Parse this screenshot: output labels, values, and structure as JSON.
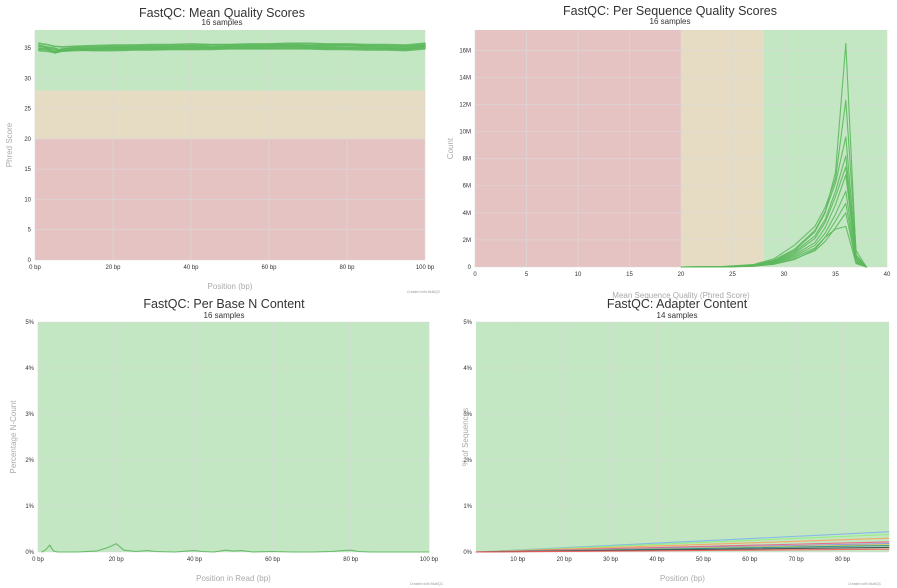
{
  "credit": "Created with MultiQC",
  "colors": {
    "good": "#c3e6c3",
    "warn": "#e6dcc3",
    "fail": "#e6c3c3",
    "line": "#5cb85c"
  },
  "chart_data": [
    {
      "type": "line",
      "title": "FastQC: Mean Quality Scores",
      "subtitle": "16 samples",
      "xlabel": "Position (bp)",
      "ylabel": "Phred Score",
      "xlim": [
        0,
        100
      ],
      "ylim": [
        0,
        38
      ],
      "x_ticks": [
        0,
        20,
        40,
        60,
        80,
        100
      ],
      "x_tick_labels": [
        "0 bp",
        "20 bp",
        "40 bp",
        "60 bp",
        "80 bp",
        "100 bp"
      ],
      "y_ticks": [
        0,
        5,
        10,
        15,
        20,
        25,
        30,
        35
      ],
      "y_tick_labels": [
        "0",
        "5",
        "10",
        "15",
        "20",
        "25",
        "30",
        "35"
      ],
      "bands": [
        {
          "from": 28,
          "to": 38,
          "zone": "good"
        },
        {
          "from": 20,
          "to": 28,
          "zone": "warn"
        },
        {
          "from": 0,
          "to": 20,
          "zone": "fail"
        }
      ],
      "grid": true,
      "series": [
        {
          "color": "#5cb85c",
          "x": [
            1,
            3,
            5,
            7,
            10,
            15,
            20,
            25,
            30,
            35,
            40,
            45,
            50,
            55,
            60,
            65,
            70,
            75,
            80,
            85,
            90,
            95,
            100
          ],
          "values": [
            35.5,
            35.2,
            35.0,
            34.6,
            34.8,
            35.0,
            35.1,
            35.1,
            35.2,
            35.2,
            35.3,
            35.2,
            35.3,
            35.3,
            35.4,
            35.4,
            35.4,
            35.3,
            35.4,
            35.3,
            35.2,
            35.1,
            35.4
          ]
        },
        {
          "color": "#5cb85c",
          "x": [
            1,
            3,
            5,
            7,
            10,
            15,
            20,
            25,
            30,
            35,
            40,
            45,
            50,
            55,
            60,
            65,
            70,
            75,
            80,
            85,
            90,
            95,
            100
          ],
          "values": [
            35.0,
            34.8,
            34.4,
            34.9,
            35.0,
            34.9,
            35.0,
            35.0,
            35.0,
            35.1,
            35.1,
            35.1,
            35.2,
            35.2,
            35.2,
            35.3,
            35.2,
            35.1,
            35.1,
            35.1,
            35.0,
            34.9,
            35.3
          ]
        },
        {
          "color": "#5cb85c",
          "x": [
            1,
            3,
            5,
            7,
            10,
            15,
            20,
            25,
            30,
            35,
            40,
            45,
            50,
            55,
            60,
            65,
            70,
            75,
            80,
            85,
            90,
            95,
            100
          ],
          "values": [
            35.8,
            35.6,
            35.3,
            35.2,
            35.3,
            35.4,
            35.5,
            35.5,
            35.6,
            35.6,
            35.7,
            35.6,
            35.6,
            35.7,
            35.7,
            35.8,
            35.8,
            35.7,
            35.7,
            35.6,
            35.6,
            35.5,
            35.8
          ]
        },
        {
          "color": "#5cb85c",
          "x": [
            1,
            3,
            5,
            7,
            10,
            15,
            20,
            25,
            30,
            35,
            40,
            45,
            50,
            55,
            60,
            65,
            70,
            75,
            80,
            85,
            90,
            95,
            100
          ],
          "values": [
            34.8,
            35.0,
            34.2,
            34.5,
            34.6,
            34.7,
            34.8,
            34.8,
            34.9,
            34.9,
            34.9,
            35.0,
            35.0,
            35.0,
            35.0,
            35.1,
            35.0,
            35.0,
            35.0,
            34.9,
            34.9,
            34.8,
            35.1
          ]
        },
        {
          "color": "#5cb85c",
          "x": [
            1,
            3,
            5,
            7,
            10,
            15,
            20,
            25,
            30,
            35,
            40,
            45,
            50,
            55,
            60,
            65,
            70,
            75,
            80,
            85,
            90,
            95,
            100
          ],
          "values": [
            35.3,
            35.1,
            34.7,
            34.8,
            35.1,
            35.2,
            35.3,
            35.3,
            35.4,
            35.4,
            35.4,
            35.5,
            35.5,
            35.5,
            35.5,
            35.6,
            35.5,
            35.5,
            35.5,
            35.4,
            35.4,
            35.3,
            35.6
          ]
        },
        {
          "color": "#5cb85c",
          "x": [
            1,
            3,
            5,
            7,
            10,
            15,
            20,
            25,
            30,
            35,
            40,
            45,
            50,
            55,
            60,
            65,
            70,
            75,
            80,
            85,
            90,
            95,
            100
          ],
          "values": [
            34.6,
            34.5,
            34.3,
            34.6,
            34.7,
            34.6,
            34.6,
            34.7,
            34.7,
            34.8,
            34.8,
            34.8,
            34.9,
            34.9,
            34.9,
            34.9,
            34.9,
            34.8,
            34.8,
            34.7,
            34.7,
            34.6,
            34.9
          ]
        }
      ]
    },
    {
      "type": "line",
      "title": "FastQC: Per Sequence Quality Scores",
      "subtitle": "16 samples",
      "xlabel": "Mean Sequence Quality (Phred Score)",
      "ylabel": "Count",
      "xlim": [
        0,
        40
      ],
      "ylim": [
        0,
        17500000
      ],
      "x_ticks": [
        0,
        5,
        10,
        15,
        20,
        25,
        30,
        35,
        40
      ],
      "x_tick_labels": [
        "0",
        "5",
        "10",
        "15",
        "20",
        "25",
        "30",
        "35",
        "40"
      ],
      "y_ticks": [
        0,
        2000000,
        4000000,
        6000000,
        8000000,
        10000000,
        12000000,
        14000000,
        16000000
      ],
      "y_tick_labels": [
        "0",
        "2M",
        "4M",
        "6M",
        "8M",
        "10M",
        "12M",
        "14M",
        "16M"
      ],
      "bands": [
        {
          "from": 0,
          "to": 20,
          "zone": "fail",
          "axis": "x"
        },
        {
          "from": 20,
          "to": 28,
          "zone": "warn",
          "axis": "x"
        },
        {
          "from": 28,
          "to": 40,
          "zone": "good",
          "axis": "x"
        }
      ],
      "grid": true,
      "series": [
        {
          "color": "#5cb85c",
          "x": [
            20,
            24,
            27,
            29,
            31,
            33,
            34,
            35,
            36,
            37,
            38
          ],
          "values": [
            0,
            20000,
            120000,
            450000,
            1200000,
            2600000,
            4000000,
            7000000,
            16500000,
            800000,
            0
          ]
        },
        {
          "color": "#5cb85c",
          "x": [
            20,
            24,
            27,
            29,
            31,
            33,
            34,
            35,
            36,
            37,
            38
          ],
          "values": [
            0,
            30000,
            180000,
            600000,
            1600000,
            3000000,
            4400000,
            6500000,
            12300000,
            1200000,
            0
          ]
        },
        {
          "color": "#5cb85c",
          "x": [
            20,
            24,
            27,
            29,
            31,
            33,
            34,
            35,
            36,
            37,
            38
          ],
          "values": [
            0,
            25000,
            150000,
            500000,
            1300000,
            2700000,
            4100000,
            6200000,
            9600000,
            900000,
            0
          ]
        },
        {
          "color": "#5cb85c",
          "x": [
            20,
            24,
            27,
            29,
            31,
            33,
            34,
            35,
            36,
            37,
            38
          ],
          "values": [
            0,
            20000,
            130000,
            420000,
            1100000,
            2300000,
            3500000,
            5600000,
            8200000,
            700000,
            0
          ]
        },
        {
          "color": "#5cb85c",
          "x": [
            20,
            24,
            27,
            29,
            31,
            33,
            34,
            35,
            36,
            37,
            38
          ],
          "values": [
            0,
            15000,
            100000,
            380000,
            1000000,
            2100000,
            3300000,
            5200000,
            7400000,
            600000,
            0
          ]
        },
        {
          "color": "#5cb85c",
          "x": [
            20,
            24,
            27,
            29,
            31,
            33,
            34,
            35,
            36,
            37,
            38
          ],
          "values": [
            0,
            15000,
            90000,
            330000,
            900000,
            1800000,
            2900000,
            4600000,
            6800000,
            500000,
            0
          ]
        },
        {
          "color": "#5cb85c",
          "x": [
            20,
            24,
            27,
            29,
            31,
            33,
            34,
            35,
            36,
            37,
            38
          ],
          "values": [
            0,
            10000,
            80000,
            300000,
            800000,
            1600000,
            2500000,
            3900000,
            5600000,
            400000,
            0
          ]
        },
        {
          "color": "#5cb85c",
          "x": [
            20,
            24,
            27,
            29,
            31,
            33,
            34,
            35,
            36,
            37,
            38
          ],
          "values": [
            0,
            10000,
            70000,
            260000,
            700000,
            1400000,
            2200000,
            3400000,
            4700000,
            350000,
            0
          ]
        },
        {
          "color": "#5cb85c",
          "x": [
            20,
            24,
            27,
            29,
            31,
            33,
            34,
            35,
            36,
            37,
            38
          ],
          "values": [
            0,
            8000,
            60000,
            220000,
            600000,
            1200000,
            1900000,
            2900000,
            4000000,
            300000,
            0
          ]
        },
        {
          "color": "#5cb85c",
          "x": [
            20,
            24,
            27,
            29,
            31,
            33,
            34,
            35,
            36,
            37,
            38
          ],
          "values": [
            0,
            8000,
            50000,
            200000,
            550000,
            1300000,
            2200000,
            2800000,
            3000000,
            250000,
            0
          ]
        }
      ]
    },
    {
      "type": "line",
      "title": "FastQC: Per Base N Content",
      "subtitle": "16 samples",
      "xlabel": "Position in Read (bp)",
      "ylabel": "Percentage N-Count",
      "xlim": [
        0,
        100
      ],
      "ylim": [
        0,
        5
      ],
      "x_ticks": [
        0,
        20,
        40,
        60,
        80,
        100
      ],
      "x_tick_labels": [
        "0 bp",
        "20 bp",
        "40 bp",
        "60 bp",
        "80 bp",
        "100 bp"
      ],
      "y_ticks": [
        0,
        1,
        2,
        3,
        4,
        5
      ],
      "y_tick_labels": [
        "0%",
        "1%",
        "2%",
        "3%",
        "4%",
        "5%"
      ],
      "bands": [
        {
          "from": 0,
          "to": 5,
          "zone": "good"
        }
      ],
      "grid": true,
      "series": [
        {
          "color": "#5cb85c",
          "x": [
            1,
            2,
            3,
            4,
            5,
            10,
            15,
            18,
            20,
            22,
            25,
            28,
            30,
            35,
            38,
            40,
            42,
            45,
            48,
            50,
            52,
            55,
            60,
            65,
            70,
            75,
            78,
            80,
            82,
            85,
            90,
            95,
            100
          ],
          "values": [
            0,
            0.05,
            0.15,
            0.02,
            0,
            0,
            0.02,
            0.1,
            0.18,
            0.04,
            0.01,
            0.03,
            0.01,
            0,
            0.02,
            0.03,
            0.01,
            0,
            0.04,
            0.02,
            0.03,
            0,
            0.01,
            0,
            0,
            0.01,
            0.03,
            0.04,
            0.01,
            0,
            0,
            0,
            0
          ]
        }
      ]
    },
    {
      "type": "line",
      "title": "FastQC: Adapter Content",
      "subtitle": "14 samples",
      "xlabel": "Position (bp)",
      "ylabel": "% of Sequences",
      "xlim": [
        1,
        90
      ],
      "ylim": [
        0,
        5
      ],
      "x_ticks": [
        10,
        20,
        30,
        40,
        50,
        60,
        70,
        80
      ],
      "x_tick_labels": [
        "10 bp",
        "20 bp",
        "30 bp",
        "40 bp",
        "50 bp",
        "60 bp",
        "70 bp",
        "80 bp"
      ],
      "y_ticks": [
        0,
        1,
        2,
        3,
        4,
        5
      ],
      "y_tick_labels": [
        "0%",
        "1%",
        "2%",
        "3%",
        "4%",
        "5%"
      ],
      "bands": [
        {
          "from": 0,
          "to": 5,
          "zone": "good"
        }
      ],
      "grid": true,
      "series": [
        {
          "color": "#7cb5ec",
          "x": [
            1,
            90
          ],
          "values": [
            0,
            0.44
          ]
        },
        {
          "color": "#90ed7d",
          "x": [
            1,
            90
          ],
          "values": [
            0,
            0.38
          ]
        },
        {
          "color": "#f7a35c",
          "x": [
            1,
            90
          ],
          "values": [
            0,
            0.3
          ]
        },
        {
          "color": "#f15c80",
          "x": [
            1,
            90
          ],
          "values": [
            0,
            0.22
          ]
        },
        {
          "color": "#8085e9",
          "x": [
            1,
            90
          ],
          "values": [
            0,
            0.18
          ]
        },
        {
          "color": "#e4d354",
          "x": [
            1,
            90
          ],
          "values": [
            0,
            0.16
          ]
        },
        {
          "color": "#2b908f",
          "x": [
            1,
            90
          ],
          "values": [
            0,
            0.14
          ]
        },
        {
          "color": "#434348",
          "x": [
            1,
            90
          ],
          "values": [
            0,
            0.1
          ]
        },
        {
          "color": "#f45b5b",
          "x": [
            1,
            90
          ],
          "values": [
            0,
            0.06
          ]
        }
      ]
    }
  ]
}
